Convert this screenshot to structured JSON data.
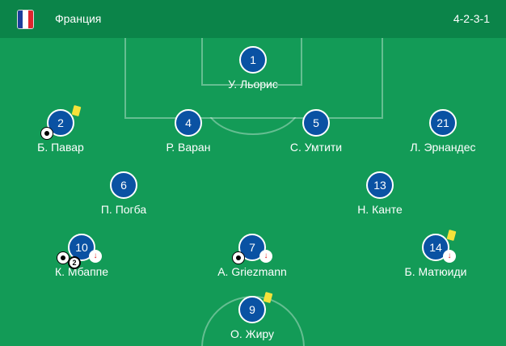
{
  "header": {
    "team": "Франция",
    "formation": "4-2-3-1",
    "flag_colors": [
      "#1c3d9c",
      "#ffffff",
      "#e0262e"
    ]
  },
  "colors": {
    "header": "#0b8449",
    "field": "#139b57",
    "player_circle": "#0a52a3",
    "yellow_card": "#f5e23a"
  },
  "players": [
    {
      "number": "1",
      "name": "У. Льорис"
    },
    {
      "number": "2",
      "name": "Б. Павар",
      "yellow_card": true,
      "goals": 1
    },
    {
      "number": "4",
      "name": "Р. Варан"
    },
    {
      "number": "5",
      "name": "С. Умтити"
    },
    {
      "number": "21",
      "name": "Л. Эрнандес"
    },
    {
      "number": "6",
      "name": "П. Погба"
    },
    {
      "number": "13",
      "name": "Н. Канте"
    },
    {
      "number": "10",
      "name": "К. Мбаппе",
      "goals": 2,
      "goal_count": "2",
      "substituted": true
    },
    {
      "number": "7",
      "name": "А. Griezmann",
      "goals": 1,
      "substituted": true
    },
    {
      "number": "14",
      "name": "Б. Матюиди",
      "yellow_card": true,
      "substituted": true
    },
    {
      "number": "9",
      "name": "О. Жиру",
      "yellow_card": true
    }
  ],
  "icons": {
    "sub": "↓"
  }
}
